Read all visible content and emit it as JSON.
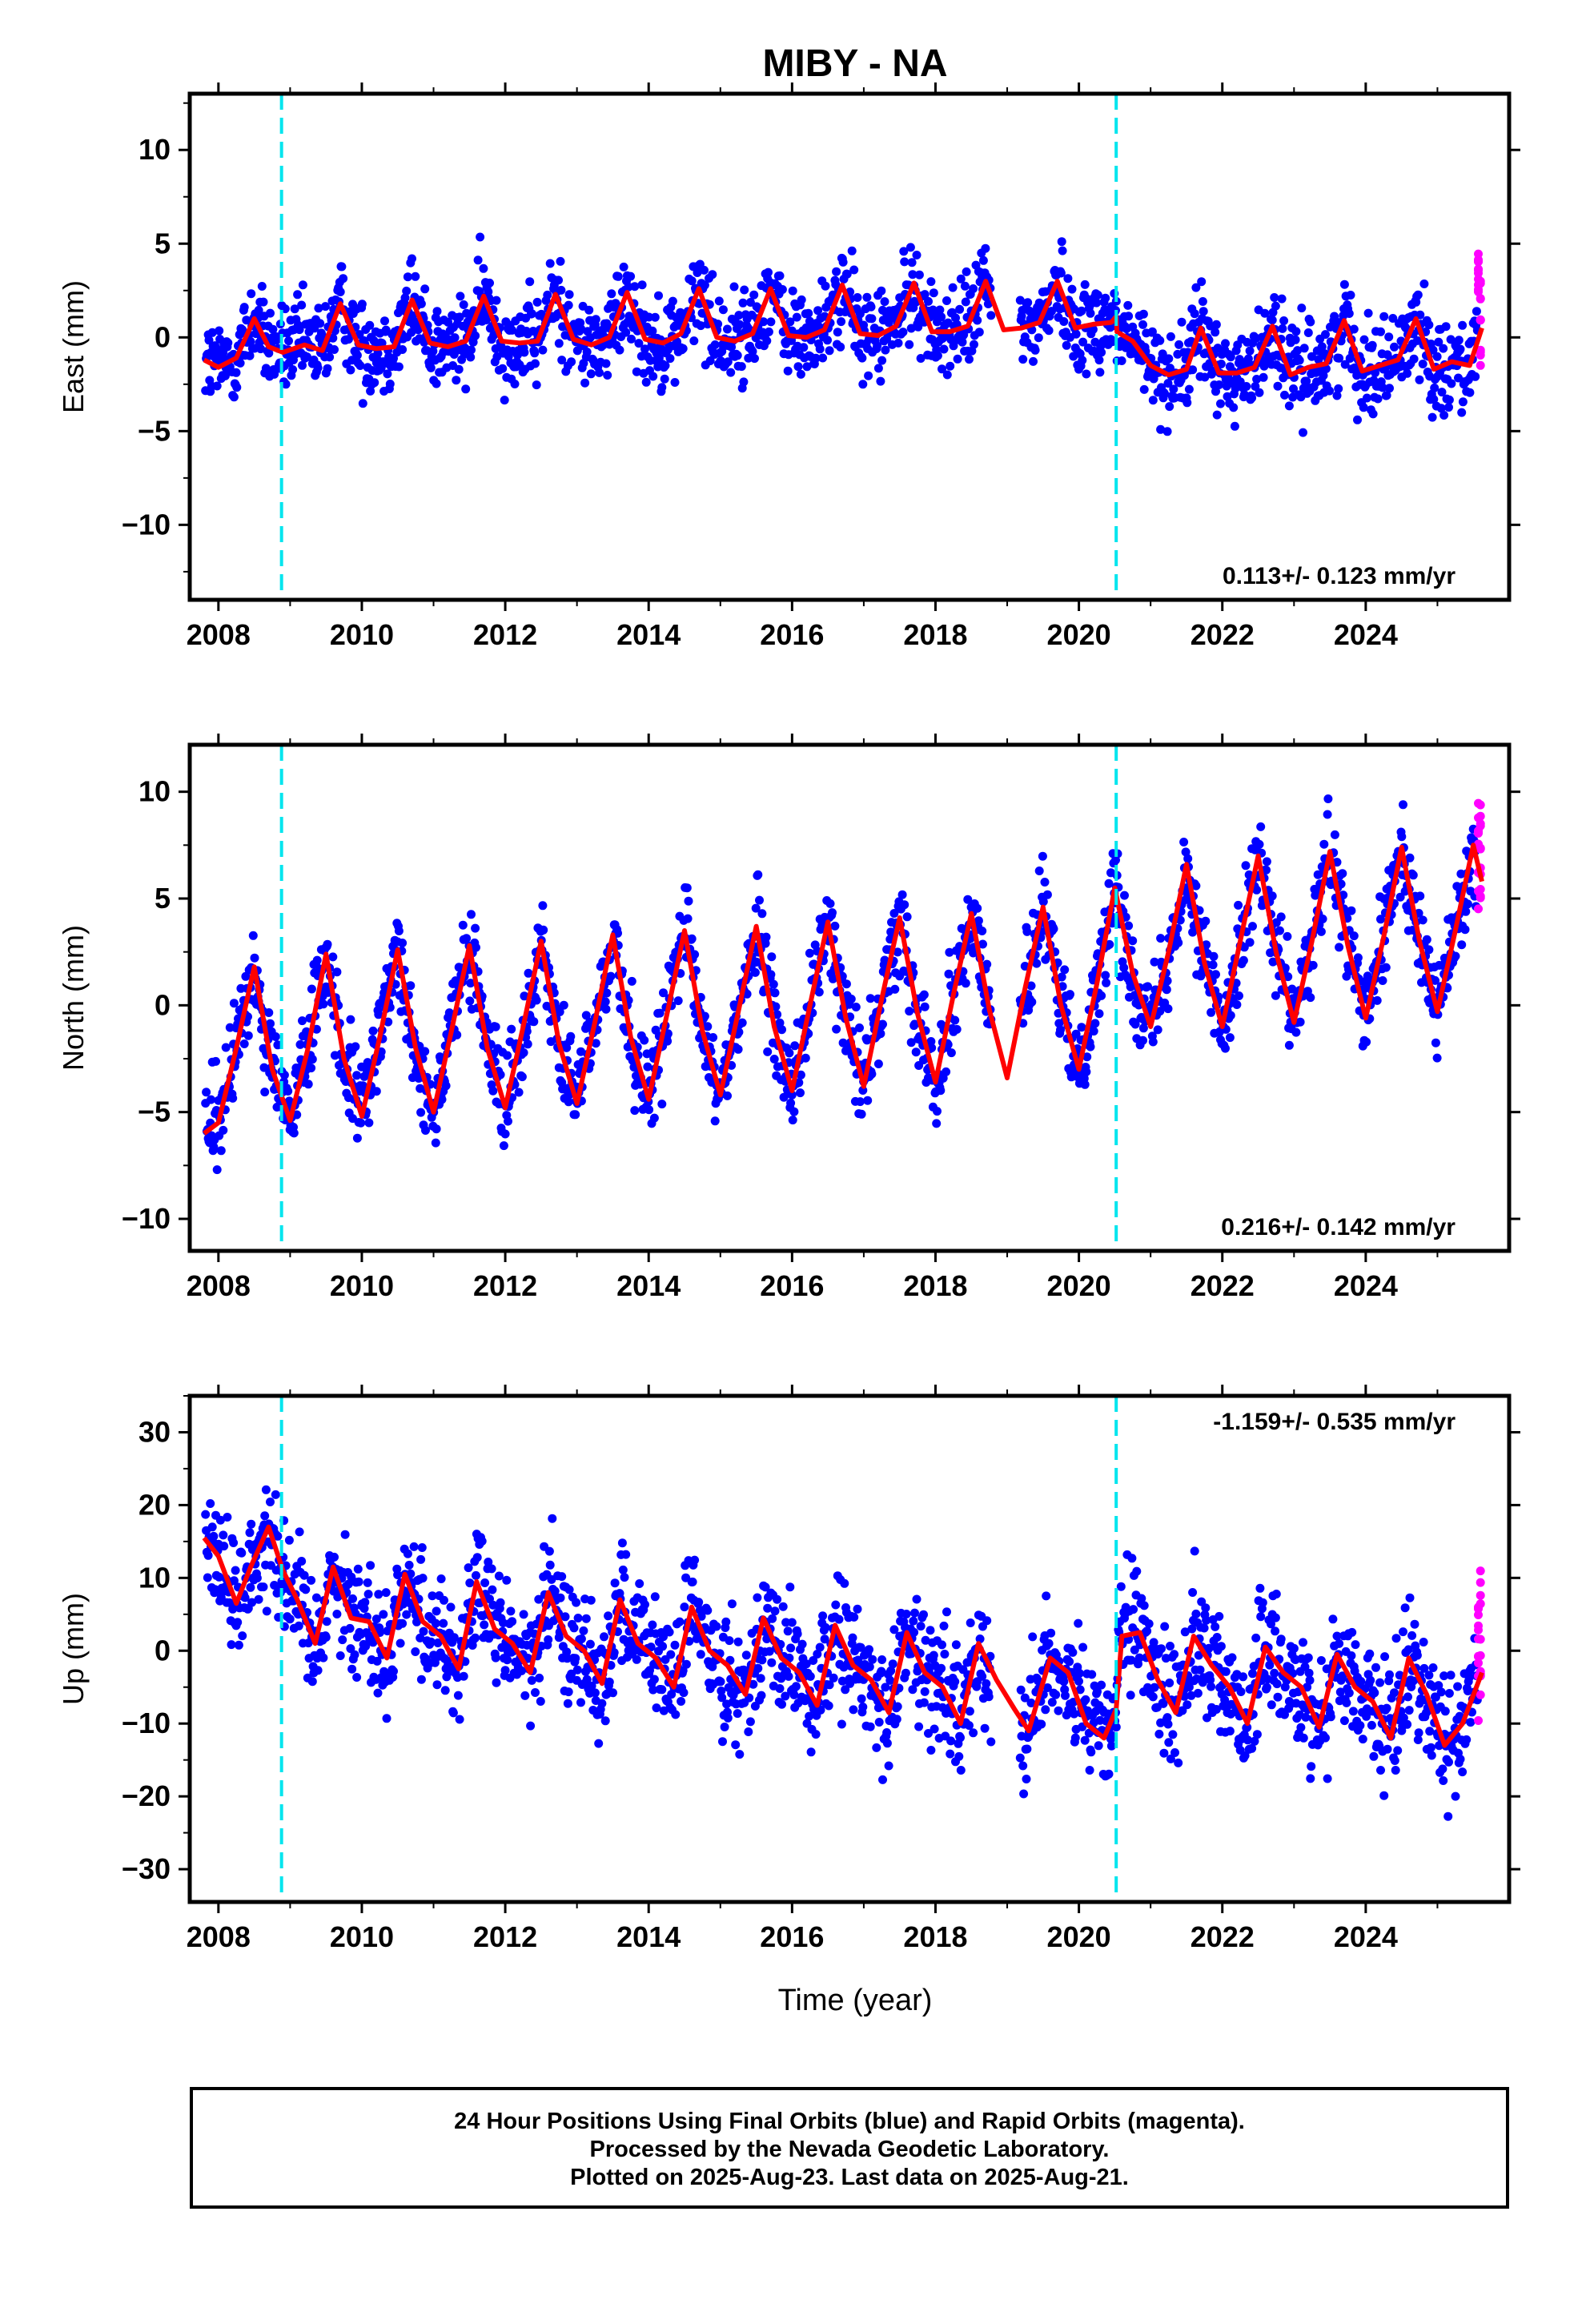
{
  "chart_data": {
    "type": "scatter",
    "title": "MIBY - NA",
    "xlabel": "Time (year)",
    "xlim": [
      2007.6,
      2026.0
    ],
    "x_ticks": [
      "2008",
      "2010",
      "2012",
      "2014",
      "2016",
      "2018",
      "2020",
      "2022",
      "2024"
    ],
    "x_tick_values": [
      2008,
      2010,
      2012,
      2014,
      2016,
      2018,
      2020,
      2022,
      2024
    ],
    "event_lines_x": [
      2008.88,
      2020.52
    ],
    "colors": {
      "final": "#0000ff",
      "rapid": "#ff00ff",
      "model": "#ff0000",
      "event": "#00e5ee"
    },
    "panels": [
      {
        "ylabel": "East (mm)",
        "ylim": [
          -14,
          13
        ],
        "y_ticks": [
          "10",
          "5",
          "0",
          "−5",
          "−10"
        ],
        "y_tick_values": [
          10,
          5,
          0,
          -5,
          -10
        ],
        "rate_label": "0.113+/- 0.123 mm/yr",
        "rate_position": "bottom-right",
        "model": {
          "x": [
            2007.8,
            2008.0,
            2008.25,
            2008.5,
            2008.7,
            2008.9,
            2009.2,
            2009.45,
            2009.7,
            2009.95,
            2010.2,
            2010.45,
            2010.7,
            2010.95,
            2011.2,
            2011.45,
            2011.7,
            2011.95,
            2012.2,
            2012.45,
            2012.7,
            2012.95,
            2013.2,
            2013.45,
            2013.7,
            2013.95,
            2014.2,
            2014.45,
            2014.7,
            2014.95,
            2015.2,
            2015.45,
            2015.7,
            2015.95,
            2016.2,
            2016.45,
            2016.7,
            2016.95,
            2017.2,
            2017.45,
            2017.7,
            2017.95,
            2018.2,
            2018.45,
            2018.7,
            2018.95,
            2019.2,
            2019.45,
            2019.7,
            2019.95,
            2020.2,
            2020.45,
            2020.52,
            2020.53,
            2020.75,
            2021.0,
            2021.25,
            2021.5,
            2021.7,
            2021.95,
            2022.2,
            2022.45,
            2022.7,
            2022.95,
            2023.2,
            2023.45,
            2023.7,
            2023.95,
            2024.2,
            2024.45,
            2024.7,
            2024.95,
            2025.2,
            2025.45,
            2025.62
          ],
          "y": [
            -1.2,
            -1.6,
            -1.1,
            1.0,
            -0.5,
            -0.8,
            -0.4,
            -0.7,
            1.8,
            -0.4,
            -0.6,
            -0.5,
            2.0,
            -0.3,
            -0.5,
            -0.2,
            2.2,
            -0.2,
            -0.3,
            -0.2,
            2.3,
            -0.1,
            -0.4,
            0.0,
            2.4,
            -0.1,
            -0.3,
            0.2,
            2.6,
            0.0,
            -0.2,
            0.2,
            2.6,
            0.1,
            0.0,
            0.4,
            2.8,
            0.2,
            0.1,
            0.6,
            2.9,
            0.3,
            0.3,
            0.6,
            3.0,
            0.4,
            0.5,
            0.8,
            3.0,
            0.5,
            0.7,
            0.8,
            1.1,
            0.3,
            -0.2,
            -1.5,
            -2.0,
            -1.7,
            0.5,
            -1.9,
            -1.9,
            -1.6,
            0.6,
            -2.0,
            -1.6,
            -1.4,
            0.9,
            -1.8,
            -1.5,
            -1.2,
            1.0,
            -1.7,
            -1.3,
            -1.5,
            0.5
          ]
        }
      },
      {
        "ylabel": "North (mm)",
        "ylim": [
          -11.5,
          12.2
        ],
        "y_ticks": [
          "10",
          "5",
          "0",
          "−5",
          "−10"
        ],
        "y_tick_values": [
          10,
          5,
          0,
          -5,
          -10
        ],
        "rate_label": "0.216+/- 0.142 mm/yr",
        "rate_position": "bottom-right",
        "model": {
          "x": [
            2007.8,
            2008.0,
            2008.25,
            2008.5,
            2008.75,
            2009.0,
            2009.25,
            2009.5,
            2009.75,
            2010.0,
            2010.25,
            2010.5,
            2010.75,
            2011.0,
            2011.25,
            2011.5,
            2011.75,
            2012.0,
            2012.25,
            2012.5,
            2012.75,
            2013.0,
            2013.25,
            2013.5,
            2013.75,
            2014.0,
            2014.25,
            2014.5,
            2014.75,
            2015.0,
            2015.25,
            2015.5,
            2015.75,
            2016.0,
            2016.25,
            2016.5,
            2016.75,
            2017.0,
            2017.25,
            2017.5,
            2017.75,
            2018.0,
            2018.25,
            2018.5,
            2018.75,
            2019.0,
            2019.25,
            2019.5,
            2019.75,
            2020.0,
            2020.25,
            2020.5,
            2020.75,
            2021.0,
            2021.25,
            2021.5,
            2021.75,
            2022.0,
            2022.25,
            2022.5,
            2022.75,
            2023.0,
            2023.25,
            2023.5,
            2023.75,
            2024.0,
            2024.25,
            2024.5,
            2024.75,
            2025.0,
            2025.25,
            2025.5,
            2025.62
          ],
          "y": [
            -6.0,
            -5.5,
            -2.0,
            1.8,
            -3.0,
            -5.4,
            -2.0,
            2.4,
            -2.5,
            -5.2,
            -1.5,
            2.6,
            -2.0,
            -5.0,
            -1.2,
            2.8,
            -2.0,
            -4.8,
            -1.0,
            3.0,
            -1.8,
            -4.6,
            -0.8,
            3.3,
            -1.5,
            -4.4,
            -0.5,
            3.5,
            -1.2,
            -4.2,
            -0.3,
            3.7,
            -1.0,
            -4.0,
            0.0,
            3.9,
            -0.6,
            -3.8,
            0.3,
            4.1,
            -0.4,
            -3.6,
            0.5,
            4.3,
            -0.2,
            -3.4,
            0.8,
            4.6,
            0.0,
            -3.0,
            1.0,
            5.5,
            1.5,
            -1.0,
            2.5,
            6.6,
            2.0,
            -1.0,
            3.0,
            7.0,
            2.5,
            -0.8,
            3.0,
            7.2,
            2.8,
            -0.6,
            3.2,
            7.4,
            3.0,
            -0.3,
            3.5,
            7.5,
            5.8
          ]
        }
      },
      {
        "ylabel": "Up (mm)",
        "ylim": [
          -34.5,
          35
        ],
        "y_ticks": [
          "30",
          "20",
          "10",
          "0",
          "−10",
          "−20",
          "−30"
        ],
        "y_tick_values": [
          30,
          20,
          10,
          0,
          -10,
          -20,
          -30
        ],
        "rate_label": "-1.159+/- 0.535 mm/yr",
        "rate_position": "top-right",
        "model": {
          "x": [
            2007.8,
            2008.0,
            2008.25,
            2008.45,
            2008.7,
            2008.9,
            2009.1,
            2009.35,
            2009.6,
            2009.85,
            2010.1,
            2010.35,
            2010.6,
            2010.85,
            2011.1,
            2011.35,
            2011.6,
            2011.85,
            2012.1,
            2012.35,
            2012.6,
            2012.85,
            2013.1,
            2013.35,
            2013.6,
            2013.85,
            2014.1,
            2014.35,
            2014.6,
            2014.85,
            2015.1,
            2015.35,
            2015.6,
            2015.85,
            2016.1,
            2016.35,
            2016.6,
            2016.85,
            2017.1,
            2017.35,
            2017.6,
            2017.85,
            2018.1,
            2018.35,
            2018.6,
            2018.85,
            2019.1,
            2019.3,
            2019.6,
            2019.85,
            2020.1,
            2020.35,
            2020.52,
            2020.6,
            2020.85,
            2021.1,
            2021.35,
            2021.6,
            2021.85,
            2022.1,
            2022.35,
            2022.6,
            2022.85,
            2023.1,
            2023.35,
            2023.6,
            2023.85,
            2024.1,
            2024.35,
            2024.6,
            2024.85,
            2025.1,
            2025.35,
            2025.62
          ],
          "y": [
            15.5,
            13.0,
            6.5,
            11.5,
            17.0,
            11.0,
            7.0,
            1.0,
            11.5,
            4.5,
            4.0,
            -1.0,
            10.5,
            4.0,
            2.0,
            -2.5,
            9.5,
            3.0,
            1.0,
            -3.0,
            8.0,
            2.0,
            0.0,
            -4.5,
            7.0,
            1.0,
            -1.0,
            -5.0,
            6.0,
            0.0,
            -2.0,
            -6.0,
            4.5,
            -1.0,
            -3.0,
            -7.5,
            3.5,
            -2.0,
            -4.0,
            -8.5,
            2.5,
            -3.0,
            -5.0,
            -10.0,
            1.0,
            -4.0,
            -8.0,
            -11.0,
            -1.0,
            -3.0,
            -10.0,
            -12.0,
            -8.0,
            2.0,
            2.5,
            -4.0,
            -8.5,
            2.0,
            -2.0,
            -5.0,
            -10.0,
            0.5,
            -3.0,
            -5.0,
            -10.5,
            -0.5,
            -5.0,
            -7.0,
            -12.0,
            -1.0,
            -6.0,
            -13.0,
            -10.0,
            -3.0
          ]
        }
      }
    ]
  },
  "caption": {
    "line1": "24 Hour Positions Using Final Orbits (blue) and Rapid Orbits (magenta).",
    "line2": "Processed by the Nevada Geodetic Laboratory.",
    "line3": "Plotted on 2025-Aug-23. Last data on 2025-Aug-21."
  }
}
